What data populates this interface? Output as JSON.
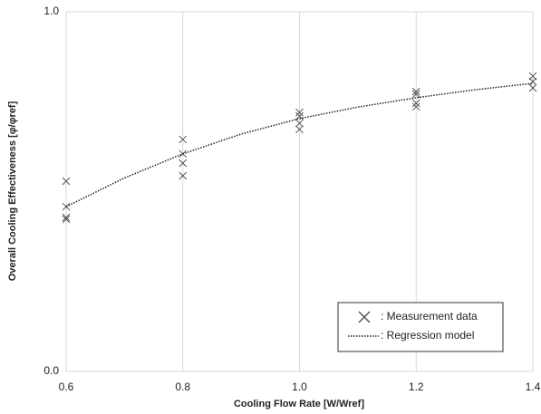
{
  "chart_data": {
    "type": "scatter",
    "xlabel": "Cooling Flow Rate [W/Wref]",
    "ylabel": "Overall Cooling Effectiveness [φ/φref]",
    "xlim": [
      0.6,
      1.4
    ],
    "ylim": [
      0,
      1
    ],
    "xticks": [
      0.6,
      0.8,
      {
        "value": 1,
        "label": "1.0"
      },
      1.2,
      1.4
    ],
    "yticks": [
      {
        "value": 0,
        "label": "0.0"
      },
      {
        "value": 1,
        "label": "1.0"
      }
    ],
    "grid": true,
    "legend": "lower right",
    "series": [
      {
        "name": ": Measurement data",
        "color": "#555555",
        "mode": "markers",
        "x": [
          0.6,
          0.6,
          0.6,
          0.6,
          0.8,
          0.8,
          0.8,
          0.8,
          1.0,
          1.0,
          1.0,
          1.0,
          1.2,
          1.2,
          1.2,
          1.2,
          1.4,
          1.4,
          1.4
        ],
        "values": [
          0.529,
          0.458,
          0.428,
          0.423,
          0.645,
          0.605,
          0.579,
          0.544,
          0.72,
          0.71,
          0.69,
          0.673,
          0.778,
          0.771,
          0.746,
          0.736,
          0.821,
          0.806,
          0.788
        ]
      },
      {
        "name": ": Regression model",
        "color": "#222222",
        "mode": "line",
        "x": [
          0.6,
          0.7,
          0.8,
          0.9,
          1.0,
          1.1,
          1.2,
          1.3,
          1.4
        ],
        "values": [
          0.458,
          0.538,
          0.605,
          0.66,
          0.703,
          0.735,
          0.761,
          0.783,
          0.801
        ]
      }
    ]
  }
}
